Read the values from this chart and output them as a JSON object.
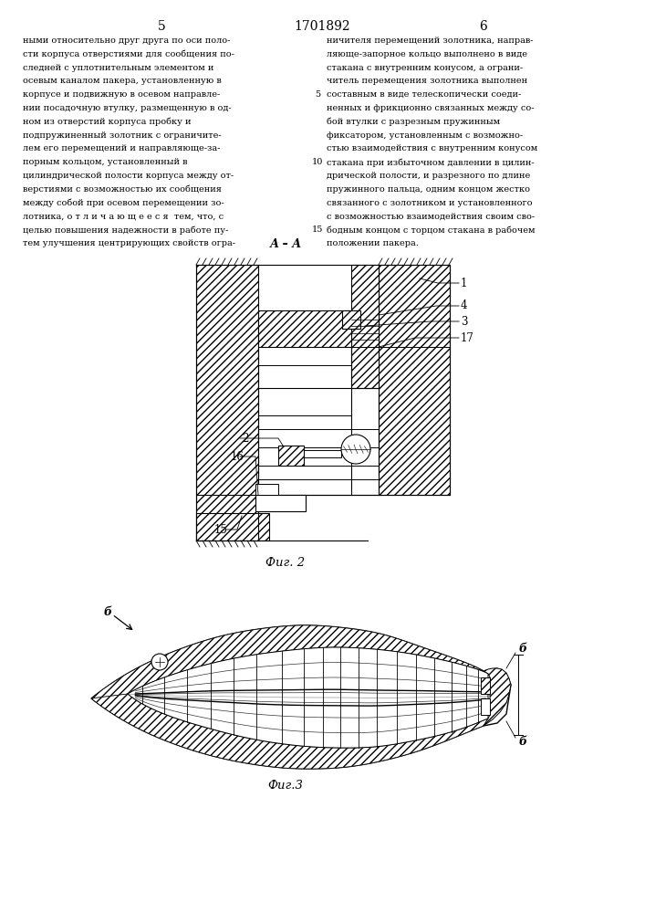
{
  "page_number_left": "5",
  "page_number_center": "1701892",
  "page_number_right": "6",
  "background_color": "#ffffff",
  "text_color": "#000000",
  "fig_width": 7.07,
  "fig_height": 10.0,
  "dpi": 100,
  "left_column_text": [
    "ными относительно друг друга по оси поло-",
    "сти корпуса отверстиями для сообщения по-",
    "следней с уплотнительным элементом и",
    "осевым каналом пакера, установленную в",
    "корпусе и подвижную в осевом направле-",
    "нии посадочную втулку, размещенную в од-",
    "ном из отверстий корпуса пробку и",
    "подпружиненный золотник с ограничите-",
    "лем его перемещений и направляюще-за-",
    "порным кольцом, установленный в",
    "цилиндрической полости корпуса между от-",
    "верстиями с возможностью их сообщения",
    "между собой при осевом перемещении зо-",
    "лотника, о т л и ч а ю щ е е с я  тем, что, с",
    "целью повышения надежности в работе пу-",
    "тем улучшения центрирующих свойств огра-"
  ],
  "right_column_text": [
    "ничителя перемещений золотника, направ-",
    "ляюще-запорное кольцо выполнено в виде",
    "стакана с внутренним конусом, а ограни-",
    "читель перемещения золотника выполнен",
    "составным в виде телескопически соеди-",
    "ненных и фрикционно связанных между со-",
    "бой втулки с разрезным пружинным",
    "фиксатором, установленным с возможно-",
    "стью взаимодействия с внутренним конусом",
    "стакана при избыточном давлении в цилин-",
    "дрической полости, и разрезного по длине",
    "пружинного пальца, одним концом жестко",
    "связанного с золотником и установленного",
    "с возможностью взаимодействия своим сво-",
    "бодным концом с торцом стакана в рабочем",
    "положении пакера."
  ],
  "line_number_map": {
    "4": "5",
    "9": "10",
    "14": "15"
  },
  "section_label": "А – А",
  "fig2_label": "Фиг. 2",
  "fig3_label": "Фиг.3"
}
